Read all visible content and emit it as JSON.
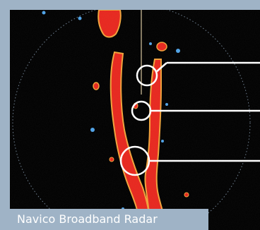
{
  "caption": {
    "text": "Navico Broadband Radar"
  },
  "colors": {
    "frame": "#9fb3c6",
    "screen": "#000000",
    "echo_core": "#e8271e",
    "echo_edge": "#f2a33a",
    "echo_fringe": "#4fa3e8",
    "range_ring": "#6e7f90",
    "heading_line": "#d9c7a0",
    "callout": "#ffffff"
  },
  "callouts": [
    {
      "name": "callout-target-1"
    },
    {
      "name": "callout-target-2"
    },
    {
      "name": "callout-target-3"
    }
  ]
}
